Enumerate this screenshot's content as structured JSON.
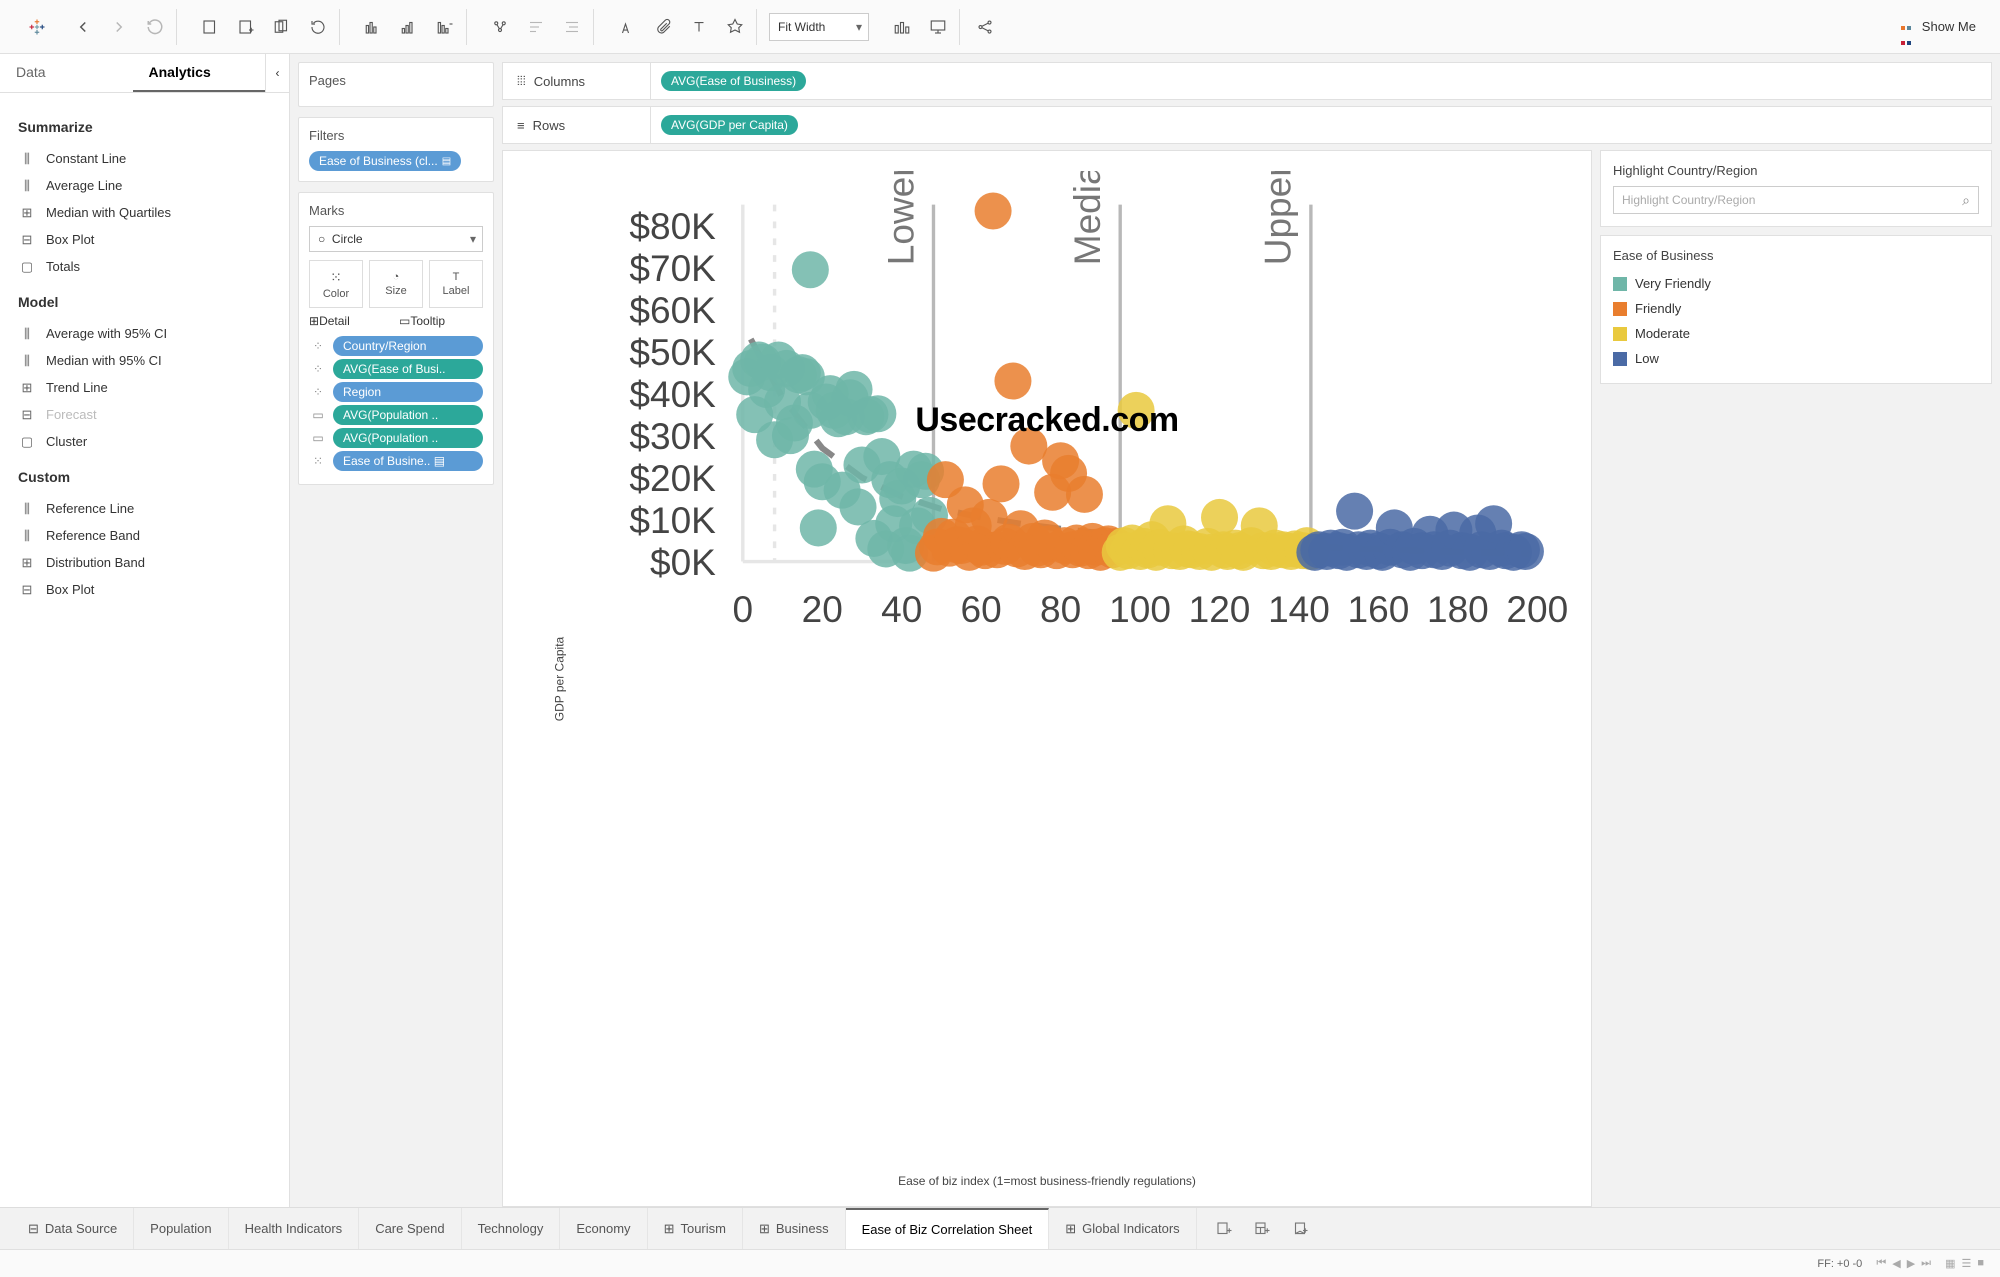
{
  "toolbar": {
    "fit_selector": "Fit Width",
    "showme_label": "Show Me"
  },
  "sidebar": {
    "tabs": {
      "data": "Data",
      "analytics": "Analytics"
    },
    "sections": {
      "summarize": {
        "title": "Summarize",
        "items": [
          "Constant Line",
          "Average Line",
          "Median with Quartiles",
          "Box Plot",
          "Totals"
        ]
      },
      "model": {
        "title": "Model",
        "items": [
          "Average with 95% CI",
          "Median with 95% CI",
          "Trend Line",
          "Forecast",
          "Cluster"
        ],
        "disabled_index": 3
      },
      "custom": {
        "title": "Custom",
        "items": [
          "Reference Line",
          "Reference Band",
          "Distribution Band",
          "Box Plot"
        ]
      }
    }
  },
  "cards": {
    "pages": {
      "title": "Pages"
    },
    "filters": {
      "title": "Filters",
      "pill": "Ease of Business (cl..."
    },
    "marks": {
      "title": "Marks",
      "shape": "Circle",
      "cells": [
        "Color",
        "Size",
        "Label",
        "Detail",
        "Tooltip"
      ],
      "pills": [
        {
          "label": "Country/Region",
          "color": "blue",
          "icon": "detail"
        },
        {
          "label": "AVG(Ease of Busi..",
          "color": "teal",
          "icon": "detail"
        },
        {
          "label": "Region",
          "color": "blue",
          "icon": "detail"
        },
        {
          "label": "AVG(Population ..",
          "color": "teal",
          "icon": "tooltip"
        },
        {
          "label": "AVG(Population ..",
          "color": "teal",
          "icon": "tooltip"
        },
        {
          "label": "Ease of Busine..",
          "color": "blue",
          "icon": "color"
        }
      ]
    }
  },
  "shelves": {
    "columns": {
      "label": "Columns",
      "pill": "AVG(Ease of Business)"
    },
    "rows": {
      "label": "Rows",
      "pill": "AVG(GDP per Capita)"
    }
  },
  "right": {
    "highlight": {
      "title": "Highlight Country/Region",
      "placeholder": "Highlight Country/Region"
    },
    "legend": {
      "title": "Ease of Business",
      "items": [
        {
          "label": "Very Friendly",
          "color": "#6fb6a8"
        },
        {
          "label": "Friendly",
          "color": "#e97e2e"
        },
        {
          "label": "Moderate",
          "color": "#e9c93e"
        },
        {
          "label": "Low",
          "color": "#4a6aa5"
        }
      ]
    }
  },
  "chart": {
    "type": "scatter",
    "y_axis_label": "GDP per Capita",
    "x_axis_label": "Ease of biz index (1=most business-friendly regulations)",
    "xlim": [
      0,
      200
    ],
    "ylim": [
      0,
      85000
    ],
    "xticks": [
      0,
      20,
      40,
      60,
      80,
      100,
      120,
      140,
      160,
      180,
      200
    ],
    "yticks": [
      0,
      10000,
      20000,
      30000,
      40000,
      50000,
      60000,
      70000,
      80000
    ],
    "ytick_labels": [
      "$0K",
      "$10K",
      "$20K",
      "$30K",
      "$40K",
      "$50K",
      "$60K",
      "$70K",
      "$80K"
    ],
    "reference_lines": [
      {
        "label": "Lower Quartile",
        "x": 48
      },
      {
        "label": "Median",
        "x": 95
      },
      {
        "label": "Upper Quartile",
        "x": 143
      }
    ],
    "colors": {
      "very_friendly": "#6fb6a8",
      "friendly": "#e97e2e",
      "moderate": "#e9c93e",
      "low": "#4a6aa5",
      "grid": "#e6e6e6",
      "refline": "#b8b8b8",
      "trend": "#888888",
      "background": "#ffffff",
      "text": "#444444"
    },
    "marker_radius": 5.5,
    "marker_opacity": 0.85,
    "trend_curve": [
      [
        2,
        53000
      ],
      [
        10,
        39000
      ],
      [
        20,
        27000
      ],
      [
        30,
        20000
      ],
      [
        40,
        15500
      ],
      [
        50,
        12500
      ],
      [
        60,
        10500
      ],
      [
        70,
        9000
      ],
      [
        80,
        7800
      ],
      [
        90,
        6800
      ],
      [
        100,
        6000
      ],
      [
        110,
        5300
      ],
      [
        120,
        4700
      ],
      [
        130,
        4200
      ],
      [
        140,
        3700
      ],
      [
        150,
        3300
      ],
      [
        160,
        2900
      ],
      [
        170,
        2600
      ],
      [
        180,
        2300
      ],
      [
        190,
        2100
      ],
      [
        198,
        1900
      ]
    ],
    "points": {
      "very_friendly": [
        [
          1,
          44000
        ],
        [
          2,
          46000
        ],
        [
          3,
          35000
        ],
        [
          4,
          48000
        ],
        [
          5,
          47500
        ],
        [
          6,
          41000
        ],
        [
          7,
          45000
        ],
        [
          8,
          29000
        ],
        [
          9,
          48000
        ],
        [
          10,
          38000
        ],
        [
          11,
          46000
        ],
        [
          12,
          30000
        ],
        [
          13,
          33000
        ],
        [
          14,
          44500
        ],
        [
          15,
          45000
        ],
        [
          16,
          44000
        ],
        [
          17,
          36000
        ],
        [
          17,
          69500
        ],
        [
          18,
          22000
        ],
        [
          19,
          8000
        ],
        [
          20,
          19000
        ],
        [
          21,
          38000
        ],
        [
          22,
          40000
        ],
        [
          23,
          36000
        ],
        [
          24,
          34000
        ],
        [
          25,
          17000
        ],
        [
          26,
          34500
        ],
        [
          27,
          39000
        ],
        [
          28,
          41000
        ],
        [
          29,
          13000
        ],
        [
          30,
          23000
        ],
        [
          31,
          34500
        ],
        [
          32,
          35000
        ],
        [
          33,
          5500
        ],
        [
          34,
          35200
        ],
        [
          35,
          25000
        ],
        [
          36,
          3000
        ],
        [
          37,
          19500
        ],
        [
          38,
          9000
        ],
        [
          39,
          15000
        ],
        [
          40,
          18000
        ],
        [
          41,
          3800
        ],
        [
          42,
          2000
        ],
        [
          43,
          22000
        ],
        [
          44,
          8500
        ],
        [
          45,
          19500
        ],
        [
          46,
          21500
        ],
        [
          47,
          11000
        ]
      ],
      "friendly": [
        [
          48,
          2000
        ],
        [
          49,
          3500
        ],
        [
          50,
          6000
        ],
        [
          51,
          19500
        ],
        [
          52,
          3200
        ],
        [
          53,
          5800
        ],
        [
          54,
          4000
        ],
        [
          55,
          3800
        ],
        [
          56,
          13500
        ],
        [
          57,
          2200
        ],
        [
          58,
          8500
        ],
        [
          59,
          4200
        ],
        [
          60,
          3400
        ],
        [
          61,
          2600
        ],
        [
          62,
          10500
        ],
        [
          63,
          83500
        ],
        [
          64,
          2800
        ],
        [
          65,
          18500
        ],
        [
          66,
          3600
        ],
        [
          67,
          4600
        ],
        [
          68,
          43000
        ],
        [
          69,
          3000
        ],
        [
          70,
          7800
        ],
        [
          71,
          2400
        ],
        [
          72,
          27500
        ],
        [
          73,
          4800
        ],
        [
          74,
          3200
        ],
        [
          75,
          2800
        ],
        [
          76,
          5600
        ],
        [
          77,
          4200
        ],
        [
          78,
          16500
        ],
        [
          79,
          2600
        ],
        [
          80,
          24000
        ],
        [
          81,
          3800
        ],
        [
          82,
          21000
        ],
        [
          83,
          2800
        ],
        [
          84,
          4400
        ],
        [
          85,
          3200
        ],
        [
          86,
          16000
        ],
        [
          87,
          2600
        ],
        [
          88,
          4800
        ],
        [
          89,
          3400
        ],
        [
          90,
          2200
        ],
        [
          91,
          3800
        ],
        [
          92,
          4200
        ],
        [
          93,
          2800
        ],
        [
          94,
          3600
        ]
      ],
      "moderate": [
        [
          95,
          2200
        ],
        [
          96,
          3800
        ],
        [
          97,
          2600
        ],
        [
          98,
          4400
        ],
        [
          99,
          36000
        ],
        [
          100,
          2400
        ],
        [
          101,
          3600
        ],
        [
          102,
          2800
        ],
        [
          103,
          5200
        ],
        [
          104,
          2200
        ],
        [
          105,
          3400
        ],
        [
          107,
          9000
        ],
        [
          108,
          2600
        ],
        [
          110,
          2400
        ],
        [
          111,
          4200
        ],
        [
          112,
          3000
        ],
        [
          113,
          2800
        ],
        [
          115,
          2400
        ],
        [
          117,
          3600
        ],
        [
          118,
          2200
        ],
        [
          120,
          10500
        ],
        [
          121,
          2800
        ],
        [
          122,
          2400
        ],
        [
          124,
          3200
        ],
        [
          125,
          2600
        ],
        [
          126,
          2200
        ],
        [
          128,
          3800
        ],
        [
          130,
          8500
        ],
        [
          131,
          2600
        ],
        [
          133,
          2400
        ],
        [
          134,
          3200
        ],
        [
          136,
          2800
        ],
        [
          138,
          2400
        ],
        [
          139,
          3000
        ],
        [
          141,
          2600
        ],
        [
          142,
          3800
        ],
        [
          143,
          2400
        ]
      ],
      "low": [
        [
          144,
          2200
        ],
        [
          145,
          2800
        ],
        [
          147,
          2400
        ],
        [
          148,
          3200
        ],
        [
          150,
          2600
        ],
        [
          151,
          3400
        ],
        [
          152,
          2200
        ],
        [
          154,
          12000
        ],
        [
          155,
          2800
        ],
        [
          157,
          2400
        ],
        [
          158,
          3200
        ],
        [
          160,
          2600
        ],
        [
          161,
          2200
        ],
        [
          163,
          3400
        ],
        [
          164,
          8000
        ],
        [
          166,
          2800
        ],
        [
          168,
          2200
        ],
        [
          169,
          3600
        ],
        [
          171,
          2600
        ],
        [
          173,
          6500
        ],
        [
          174,
          2800
        ],
        [
          176,
          2400
        ],
        [
          178,
          3200
        ],
        [
          179,
          7500
        ],
        [
          181,
          2600
        ],
        [
          183,
          2200
        ],
        [
          185,
          6800
        ],
        [
          186,
          2800
        ],
        [
          188,
          2400
        ],
        [
          189,
          9000
        ],
        [
          191,
          3200
        ],
        [
          192,
          2600
        ],
        [
          194,
          2200
        ],
        [
          196,
          2800
        ],
        [
          197,
          2400
        ]
      ]
    },
    "watermark": "Usecracked.com"
  },
  "bottom_tabs": {
    "data_source": "Data Source",
    "tabs": [
      "Population",
      "Health Indicators",
      "Care Spend",
      "Technology",
      "Economy",
      "Tourism",
      "Business",
      "Ease of Biz Correlation Sheet",
      "Global Indicators"
    ],
    "active_index": 7,
    "icon_tabs": [
      5,
      6,
      8
    ]
  },
  "statusbar": {
    "ff": "FF: +0 -0"
  }
}
